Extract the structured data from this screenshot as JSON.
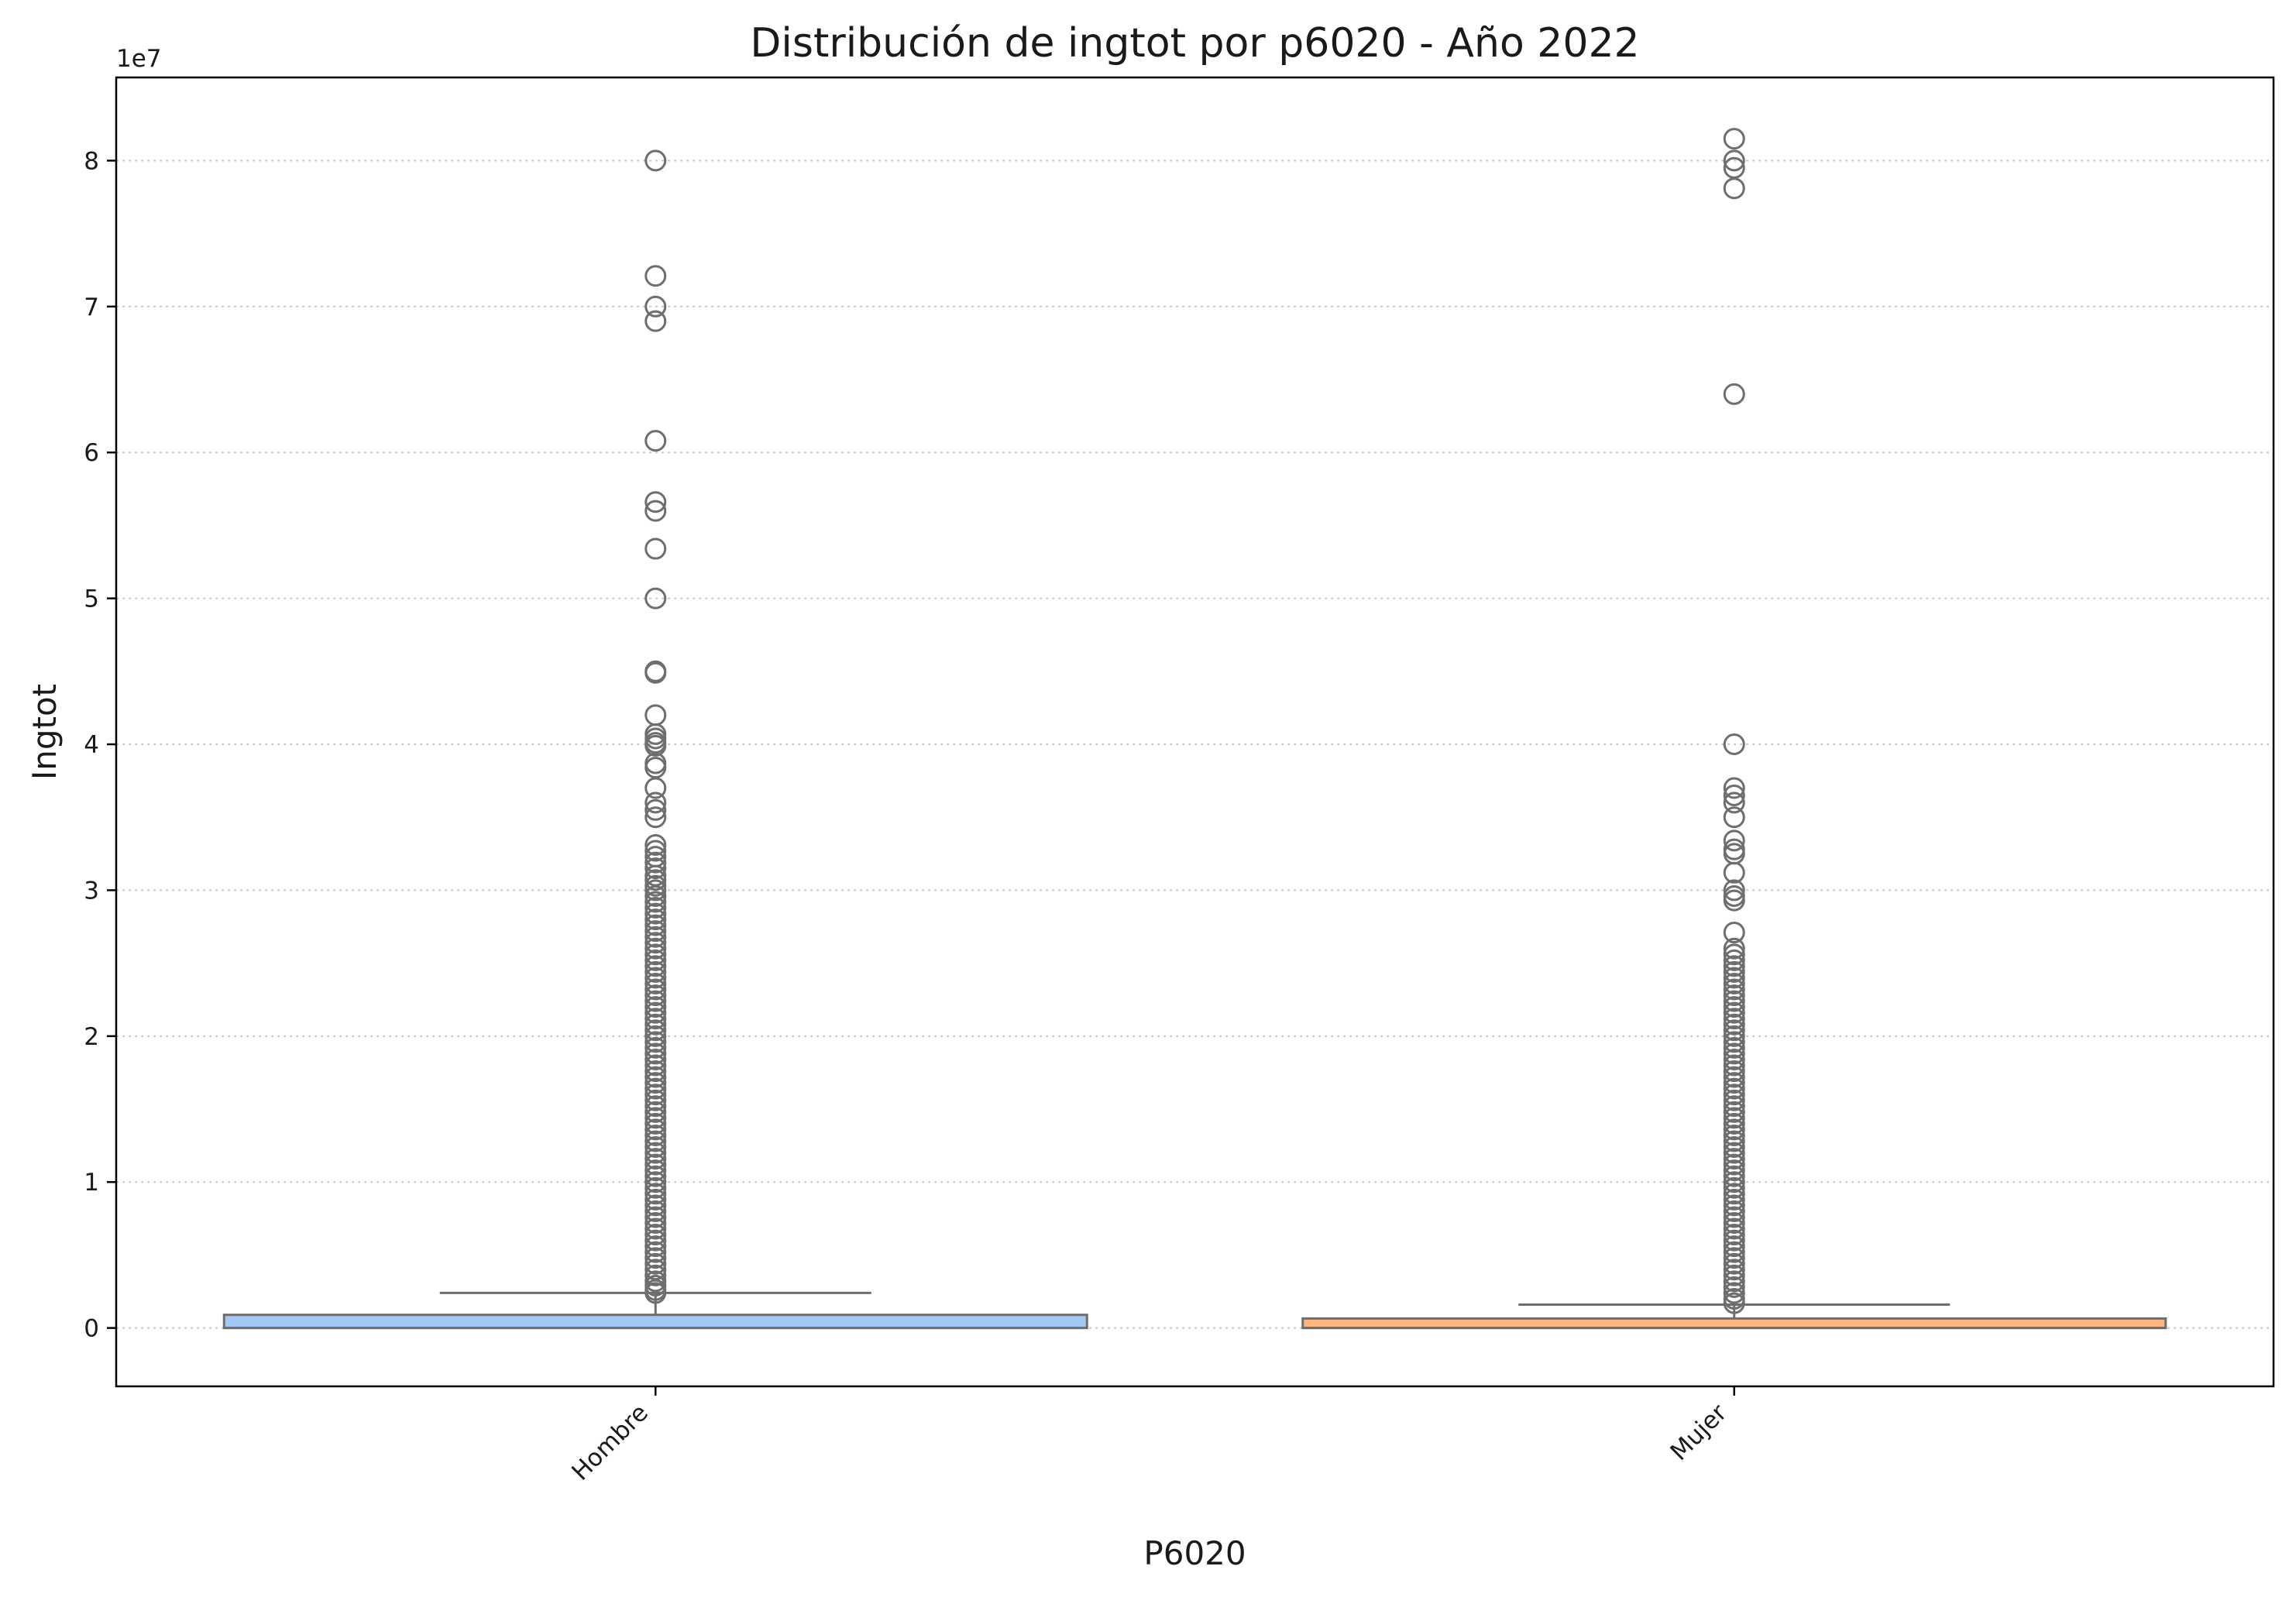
{
  "chart_data": {
    "type": "box",
    "title": "Distribución de ingtot por p6020 - Año 2022",
    "xlabel": "P6020",
    "ylabel": "Ingtot",
    "y_offset_label": "1e7",
    "y_ticks": [
      0,
      10000000,
      20000000,
      30000000,
      40000000,
      50000000,
      60000000,
      70000000,
      80000000
    ],
    "y_tick_labels": [
      "0",
      "1",
      "2",
      "3",
      "4",
      "5",
      "6",
      "7",
      "8"
    ],
    "ylim": [
      -4000000,
      85700000
    ],
    "grid": "horizontal dotted",
    "categories": [
      "Hombre",
      "Mujer"
    ],
    "series": [
      {
        "category": "Hombre",
        "color": "#a1c9f4",
        "stats": {
          "min": 0,
          "q1": 0,
          "median": 0,
          "q3": 900000,
          "whisker_high": 2400000
        },
        "outliers": [
          80000000,
          72100000,
          70000000,
          69000000,
          60800000,
          56600000,
          56000000,
          53400000,
          50000000,
          45000000,
          44900000,
          42000000,
          40700000,
          40400000,
          40100000,
          39900000,
          38700000,
          38400000,
          37000000,
          36000000,
          35500000,
          35000000,
          33100000,
          32700000,
          32300000,
          31900000,
          31500000,
          31000000,
          30700000,
          30300000,
          30000000,
          29600000,
          29200000,
          28800000,
          28400000,
          28000000,
          27600000,
          27200000,
          26800000,
          26400000,
          26000000,
          25600000,
          25200000,
          24800000,
          24400000,
          24000000,
          23600000,
          23200000,
          22800000,
          22400000,
          22000000,
          21600000,
          21200000,
          20800000,
          20400000,
          20000000,
          19600000,
          19200000,
          18800000,
          18400000,
          18000000,
          17600000,
          17200000,
          16800000,
          16400000,
          16000000,
          15600000,
          15200000,
          14800000,
          14400000,
          14000000,
          13600000,
          13200000,
          12800000,
          12400000,
          12000000,
          11600000,
          11200000,
          10800000,
          10400000,
          10000000,
          9600000,
          9200000,
          8800000,
          8400000,
          8000000,
          7600000,
          7200000,
          6800000,
          6400000,
          6000000,
          5600000,
          5200000,
          4800000,
          4400000,
          4000000,
          3600000,
          3200000,
          2900000,
          2600000,
          2400000
        ]
      },
      {
        "category": "Mujer",
        "color": "#ffb482",
        "stats": {
          "min": 0,
          "q1": 0,
          "median": 0,
          "q3": 650000,
          "whisker_high": 1600000
        },
        "outliers": [
          81500000,
          80000000,
          79500000,
          78100000,
          64000000,
          40000000,
          37000000,
          36500000,
          36000000,
          35000000,
          33400000,
          32800000,
          32500000,
          31200000,
          30000000,
          29600000,
          29300000,
          27100000,
          26000000,
          25600000,
          25200000,
          24800000,
          24400000,
          24000000,
          23600000,
          23200000,
          22800000,
          22400000,
          22000000,
          21600000,
          21200000,
          20800000,
          20400000,
          20000000,
          19600000,
          19200000,
          18800000,
          18400000,
          18000000,
          17600000,
          17200000,
          16800000,
          16400000,
          16000000,
          15600000,
          15200000,
          14800000,
          14400000,
          14000000,
          13600000,
          13200000,
          12800000,
          12400000,
          12000000,
          11600000,
          11200000,
          10800000,
          10400000,
          10000000,
          9600000,
          9200000,
          8800000,
          8400000,
          8000000,
          7600000,
          7200000,
          6800000,
          6400000,
          6000000,
          5600000,
          5200000,
          4800000,
          4400000,
          4000000,
          3600000,
          3200000,
          2800000,
          2400000,
          2000000,
          1700000
        ]
      }
    ],
    "colors": {
      "box_edge": "#6e6e6e",
      "outlier_edge": "#6e6e6e",
      "grid": "#c8c8c8",
      "axes": "#000000"
    }
  }
}
